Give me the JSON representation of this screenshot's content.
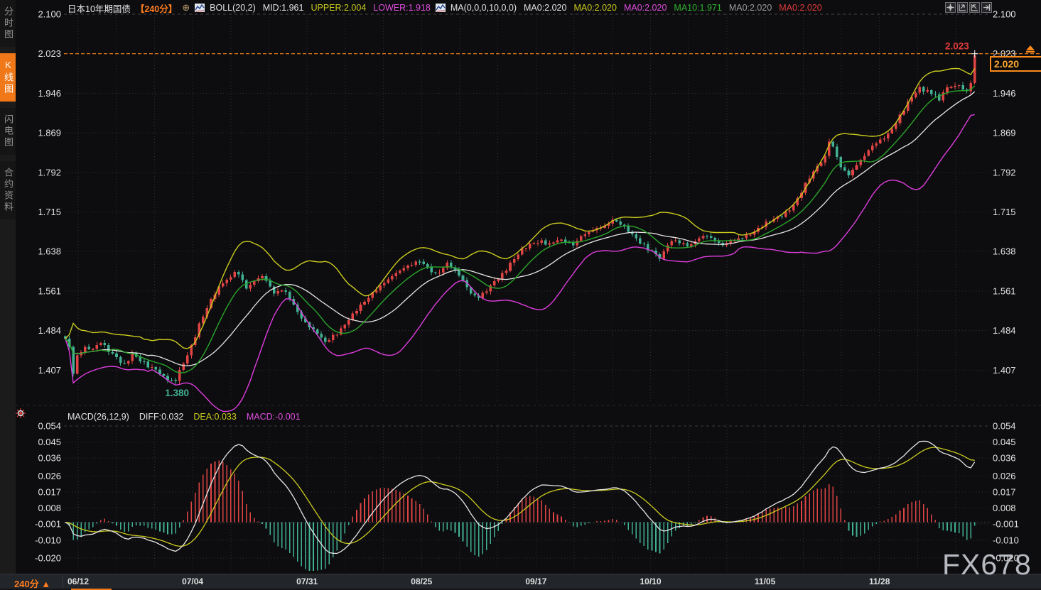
{
  "window": {
    "watermark": "FX678"
  },
  "sidebar": {
    "tabs": [
      {
        "label": "分时图",
        "active": false
      },
      {
        "label": "K线图",
        "active": true
      },
      {
        "label": "闪电图",
        "active": false
      },
      {
        "label": "合约资料",
        "active": false
      }
    ]
  },
  "header": {
    "title": "日本10年期国债",
    "period_tag": "【240分】",
    "collapse_icon": "⊕",
    "boll_group": [
      {
        "label": "BOLL(20,2)",
        "color": "#e2e2e2"
      },
      {
        "label": "MID:1.961",
        "color": "#e2e2e2"
      },
      {
        "label": "UPPER:2.004",
        "color": "#cbcb1f"
      },
      {
        "label": "LOWER:1.918",
        "color": "#e04ee0"
      }
    ],
    "ma_group": [
      {
        "label": "MA(0,0,0,10,0,0)",
        "color": "#e2e2e2"
      },
      {
        "label": "MA0:2.020",
        "color": "#e2e2e2"
      },
      {
        "label": "MA0:2.020",
        "color": "#cbcb1f"
      },
      {
        "label": "MA0:2.020",
        "color": "#e04ee0"
      },
      {
        "label": "MA10:1.971",
        "color": "#2db22d"
      },
      {
        "label": "MA0:2.020",
        "color": "#9a9a9a"
      },
      {
        "label": "MA0:2.020",
        "color": "#e23b3b"
      }
    ]
  },
  "toolbar": {
    "icons": [
      "pan",
      "range-start",
      "range-end",
      "go-latest"
    ]
  },
  "macd_header": {
    "name": "MACD(26,12,9)",
    "items": [
      {
        "label": "DIFF:0.032",
        "color": "#e2e2e2"
      },
      {
        "label": "DEA:0.033",
        "color": "#cbcb1f"
      },
      {
        "label": "MACD:-0.001",
        "color": "#e04ee0"
      }
    ]
  },
  "bottom_bar": {
    "period": "240分 ▲",
    "dates": [
      "06/12",
      "07/04",
      "07/31",
      "08/25",
      "09/17",
      "10/10",
      "11/05",
      "11/28"
    ]
  },
  "chart_data": {
    "type": "candlestick+macd",
    "title": "日本10年期国债 240分K线 (Japan 10Y Government Bond, 240-min candles)",
    "main": {
      "y_ticks": [
        "2.100",
        "2.023",
        "1.946",
        "1.869",
        "1.792",
        "1.715",
        "1.638",
        "1.561",
        "1.484",
        "1.407"
      ],
      "ylim": [
        1.34,
        2.1
      ],
      "high_annotation": "2.023",
      "low_annotation": "1.380",
      "last_price": "2.020",
      "num_candles": 232,
      "close_anchors": [
        [
          0,
          1.468
        ],
        [
          1,
          1.452
        ],
        [
          2,
          1.4
        ],
        [
          3,
          1.436
        ],
        [
          5,
          1.452
        ],
        [
          7,
          1.448
        ],
        [
          9,
          1.46
        ],
        [
          11,
          1.442
        ],
        [
          13,
          1.432
        ],
        [
          15,
          1.42
        ],
        [
          17,
          1.44
        ],
        [
          19,
          1.424
        ],
        [
          21,
          1.412
        ],
        [
          23,
          1.408
        ],
        [
          25,
          1.396
        ],
        [
          27,
          1.388
        ],
        [
          28,
          1.386
        ],
        [
          30,
          1.42
        ],
        [
          32,
          1.456
        ],
        [
          34,
          1.498
        ],
        [
          36,
          1.528
        ],
        [
          38,
          1.554
        ],
        [
          40,
          1.576
        ],
        [
          43,
          1.598
        ],
        [
          45,
          1.582
        ],
        [
          46,
          1.566
        ],
        [
          48,
          1.58
        ],
        [
          50,
          1.59
        ],
        [
          52,
          1.57
        ],
        [
          53,
          1.556
        ],
        [
          55,
          1.562
        ],
        [
          57,
          1.546
        ],
        [
          59,
          1.52
        ],
        [
          61,
          1.5
        ],
        [
          63,
          1.486
        ],
        [
          65,
          1.47
        ],
        [
          66,
          1.462
        ],
        [
          68,
          1.476
        ],
        [
          70,
          1.488
        ],
        [
          72,
          1.504
        ],
        [
          74,
          1.522
        ],
        [
          76,
          1.54
        ],
        [
          78,
          1.558
        ],
        [
          80,
          1.572
        ],
        [
          82,
          1.584
        ],
        [
          84,
          1.596
        ],
        [
          86,
          1.606
        ],
        [
          88,
          1.612
        ],
        [
          90,
          1.618
        ],
        [
          92,
          1.608
        ],
        [
          94,
          1.596
        ],
        [
          96,
          1.606
        ],
        [
          97,
          1.616
        ],
        [
          99,
          1.602
        ],
        [
          101,
          1.582
        ],
        [
          103,
          1.556
        ],
        [
          105,
          1.548
        ],
        [
          107,
          1.56
        ],
        [
          109,
          1.58
        ],
        [
          111,
          1.596
        ],
        [
          113,
          1.616
        ],
        [
          115,
          1.632
        ],
        [
          117,
          1.644
        ],
        [
          119,
          1.654
        ],
        [
          121,
          1.66
        ],
        [
          123,
          1.654
        ],
        [
          125,
          1.66
        ],
        [
          127,
          1.656
        ],
        [
          129,
          1.65
        ],
        [
          131,
          1.668
        ],
        [
          133,
          1.676
        ],
        [
          135,
          1.684
        ],
        [
          137,
          1.688
        ],
        [
          139,
          1.7
        ],
        [
          141,
          1.69
        ],
        [
          143,
          1.676
        ],
        [
          145,
          1.664
        ],
        [
          147,
          1.652
        ],
        [
          149,
          1.64
        ],
        [
          151,
          1.624
        ],
        [
          152,
          1.638
        ],
        [
          153,
          1.65
        ],
        [
          155,
          1.66
        ],
        [
          157,
          1.654
        ],
        [
          159,
          1.652
        ],
        [
          161,
          1.664
        ],
        [
          163,
          1.668
        ],
        [
          165,
          1.658
        ],
        [
          167,
          1.65
        ],
        [
          169,
          1.658
        ],
        [
          171,
          1.664
        ],
        [
          173,
          1.67
        ],
        [
          175,
          1.676
        ],
        [
          177,
          1.686
        ],
        [
          179,
          1.696
        ],
        [
          181,
          1.706
        ],
        [
          183,
          1.716
        ],
        [
          185,
          1.728
        ],
        [
          187,
          1.752
        ],
        [
          189,
          1.78
        ],
        [
          191,
          1.804
        ],
        [
          193,
          1.824
        ],
        [
          194,
          1.852
        ],
        [
          195,
          1.842
        ],
        [
          197,
          1.802
        ],
        [
          199,
          1.786
        ],
        [
          201,
          1.806
        ],
        [
          203,
          1.824
        ],
        [
          205,
          1.844
        ],
        [
          207,
          1.856
        ],
        [
          209,
          1.868
        ],
        [
          211,
          1.888
        ],
        [
          213,
          1.912
        ],
        [
          215,
          1.938
        ],
        [
          217,
          1.958
        ],
        [
          219,
          1.952
        ],
        [
          221,
          1.944
        ],
        [
          222,
          1.932
        ],
        [
          223,
          1.948
        ],
        [
          225,
          1.958
        ],
        [
          227,
          1.962
        ],
        [
          229,
          1.95
        ],
        [
          230,
          1.966
        ],
        [
          231,
          2.02
        ]
      ],
      "indicators": {
        "boll_period": 20,
        "boll_mult": 2,
        "ma_period": 10
      },
      "colors": {
        "up": "#e04444",
        "down": "#41b093",
        "boll_upper": "#cbcb1f",
        "boll_mid": "#e6e6e6",
        "boll_lower": "#dd3ddd",
        "ma10": "#2aa52a",
        "accent": "#ff8c1a",
        "high_label": "#e23b3b",
        "low_label": "#41b093",
        "grid": "#2e2e33",
        "axis_text": "#e0e0e0"
      }
    },
    "macd": {
      "params": [
        26,
        12,
        9
      ],
      "y_ticks": [
        "0.054",
        "0.045",
        "0.036",
        "0.026",
        "0.017",
        "0.008",
        "-0.001",
        "-0.010",
        "-0.020"
      ],
      "colors": {
        "diff": "#e6e6e6",
        "dea": "#cbcb1f",
        "hist_pos": "#e04444",
        "hist_neg": "#41b093"
      }
    },
    "x_axis": {
      "dates": [
        "06/12",
        "07/04",
        "07/31",
        "08/25",
        "09/17",
        "10/10",
        "11/05",
        "11/28"
      ]
    },
    "legend_position": "top",
    "grid": true
  }
}
